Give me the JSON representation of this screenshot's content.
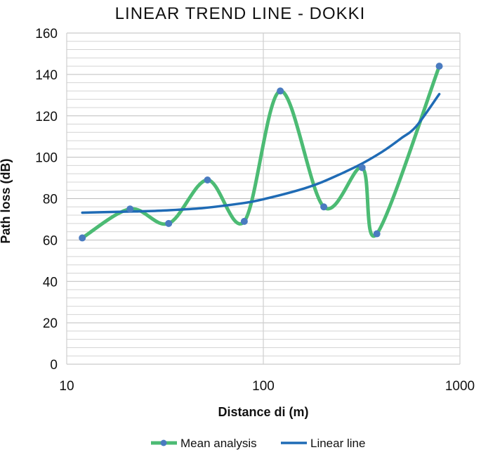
{
  "chart_data": {
    "type": "line",
    "title": "LINEAR TREND LINE - DOKKI",
    "xlabel": "Distance di (m)",
    "ylabel": "Path loss (dB)",
    "x_scale": "log",
    "xlim": [
      10,
      1000
    ],
    "ylim": [
      0,
      160
    ],
    "x_ticks": [
      "10",
      "100",
      "1000"
    ],
    "y_ticks": [
      "0",
      "20",
      "40",
      "60",
      "80",
      "100",
      "120",
      "140",
      "160"
    ],
    "grid": true,
    "legend_position": "bottom",
    "series": [
      {
        "name": "Mean analysis",
        "color": "#4cbb74",
        "marker_color": "#4a7bc0",
        "style": "smoothed line with markers",
        "x": [
          12,
          21,
          33,
          52,
          80,
          122,
          203,
          318,
          378,
          785
        ],
        "y": [
          61,
          75,
          68,
          89,
          69,
          132,
          76,
          95,
          63,
          144
        ]
      },
      {
        "name": "Linear line",
        "color": "#1f6bb5",
        "style": "line",
        "x": [
          12,
          20,
          30,
          50,
          80,
          100,
          150,
          200,
          300,
          400,
          500,
          600,
          785
        ],
        "y": [
          73.2,
          73.7,
          74.2,
          75.5,
          77.9,
          79.7,
          84.0,
          88.1,
          95.7,
          102.5,
          109.0,
          115.0,
          130.5
        ]
      }
    ]
  }
}
